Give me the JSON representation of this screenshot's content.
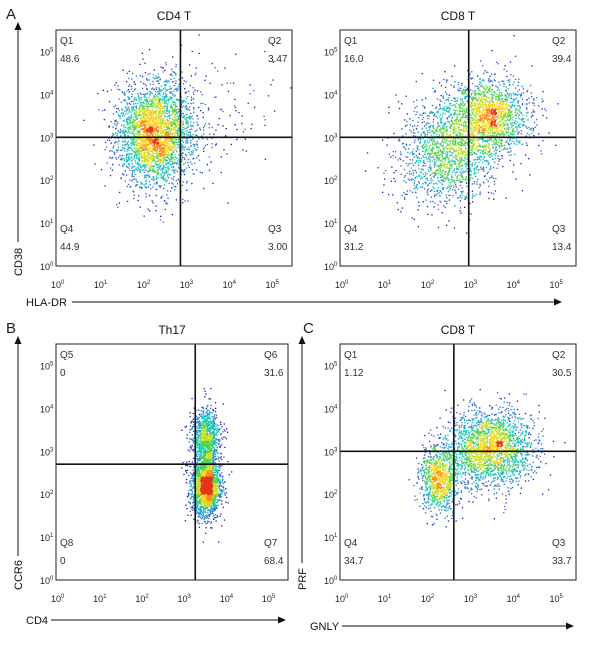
{
  "colors": {
    "density": [
      "#1a1aa8",
      "#2f5fd0",
      "#1f9fd8",
      "#17c7b5",
      "#4fd24a",
      "#c6e02a",
      "#ffd21a",
      "#ff8a16",
      "#e5341a"
    ],
    "gate": "#111111"
  },
  "chart_data": [
    {
      "panel": "A",
      "type": "scatter",
      "title": "CD4 T",
      "xlabel": "HLA-DR",
      "ylabel": "CD38",
      "scale": "log",
      "xlim": [
        1,
        316228
      ],
      "ylim": [
        1,
        316228
      ],
      "x_tick_exponents": [
        "0",
        "1",
        "2",
        "3",
        "4",
        "5"
      ],
      "y_tick_exponents": [
        "0",
        "1",
        "2",
        "3",
        "4",
        "5"
      ],
      "gate_x": 794,
      "gate_y": 1000,
      "quadrants": [
        {
          "name": "Q1",
          "percent": "48.6",
          "position": "top-left"
        },
        {
          "name": "Q2",
          "percent": "3.47",
          "position": "top-right"
        },
        {
          "name": "Q3",
          "percent": "3.00",
          "position": "bottom-right"
        },
        {
          "name": "Q4",
          "percent": "44.9",
          "position": "bottom-left"
        }
      ],
      "populations": [
        {
          "center_x": 200,
          "center_y": 1260,
          "spread_x_decades": 0.45,
          "spread_y_decades": 0.6,
          "fraction": 0.96
        },
        {
          "center_x": 5000,
          "center_y": 3000,
          "spread_x_decades": 0.8,
          "spread_y_decades": 0.9,
          "fraction": 0.04
        }
      ]
    },
    {
      "panel": "A",
      "type": "scatter",
      "title": "CD8 T",
      "xlabel": "",
      "ylabel": "",
      "scale": "log",
      "xlim": [
        1,
        316228
      ],
      "ylim": [
        1,
        316228
      ],
      "x_tick_exponents": [
        "0",
        "1",
        "2",
        "3",
        "4",
        "5"
      ],
      "y_tick_exponents": [
        "0",
        "1",
        "2",
        "3",
        "4",
        "5"
      ],
      "gate_x": 1000,
      "gate_y": 1000,
      "quadrants": [
        {
          "name": "Q1",
          "percent": "16.0",
          "position": "top-left"
        },
        {
          "name": "Q2",
          "percent": "39.4",
          "position": "top-right"
        },
        {
          "name": "Q3",
          "percent": "13.4",
          "position": "bottom-right"
        },
        {
          "name": "Q4",
          "percent": "31.2",
          "position": "bottom-left"
        }
      ],
      "populations": [
        {
          "center_x": 300,
          "center_y": 400,
          "spread_x_decades": 0.55,
          "spread_y_decades": 0.6,
          "fraction": 0.45
        },
        {
          "center_x": 2500,
          "center_y": 3200,
          "spread_x_decades": 0.5,
          "spread_y_decades": 0.45,
          "fraction": 0.55
        }
      ]
    },
    {
      "panel": "B",
      "type": "scatter",
      "title": "Th17",
      "xlabel": "CD4",
      "ylabel": "CCR6",
      "scale": "log",
      "xlim": [
        1,
        316228
      ],
      "ylim": [
        1,
        316228
      ],
      "x_tick_exponents": [
        "0",
        "1",
        "2",
        "3",
        "4",
        "5"
      ],
      "y_tick_exponents": [
        "0",
        "1",
        "2",
        "3",
        "4",
        "5"
      ],
      "gate_x": 2000,
      "gate_y": 500,
      "quadrants": [
        {
          "name": "Q5",
          "percent": "0",
          "position": "top-left"
        },
        {
          "name": "Q6",
          "percent": "31.6",
          "position": "top-right"
        },
        {
          "name": "Q7",
          "percent": "68.4",
          "position": "bottom-right"
        },
        {
          "name": "Q8",
          "percent": "0",
          "position": "bottom-left"
        }
      ],
      "populations": [
        {
          "center_x": 3500,
          "center_y": 2000,
          "spread_x_decades": 0.17,
          "spread_y_decades": 0.35,
          "fraction": 0.32
        },
        {
          "center_x": 3500,
          "center_y": 160,
          "spread_x_decades": 0.17,
          "spread_y_decades": 0.35,
          "fraction": 0.68
        }
      ]
    },
    {
      "panel": "C",
      "type": "scatter",
      "title": "CD8 T",
      "xlabel": "GNLY",
      "ylabel": "PRF",
      "scale": "log",
      "xlim": [
        1,
        316228
      ],
      "ylim": [
        1,
        316228
      ],
      "x_tick_exponents": [
        "0",
        "1",
        "2",
        "3",
        "4",
        "5"
      ],
      "y_tick_exponents": [
        "0",
        "1",
        "2",
        "3",
        "4",
        "5"
      ],
      "gate_x": 450,
      "gate_y": 1000,
      "quadrants": [
        {
          "name": "Q1",
          "percent": "1.12",
          "position": "top-left"
        },
        {
          "name": "Q2",
          "percent": "30.5",
          "position": "top-right"
        },
        {
          "name": "Q3",
          "percent": "33.7",
          "position": "bottom-right"
        },
        {
          "name": "Q4",
          "percent": "34.7",
          "position": "bottom-left"
        }
      ],
      "populations": [
        {
          "center_x": 200,
          "center_y": 250,
          "spread_x_decades": 0.22,
          "spread_y_decades": 0.4,
          "fraction": 0.3
        },
        {
          "center_x": 3000,
          "center_y": 1200,
          "spread_x_decades": 0.5,
          "spread_y_decades": 0.45,
          "fraction": 0.7
        }
      ]
    }
  ]
}
